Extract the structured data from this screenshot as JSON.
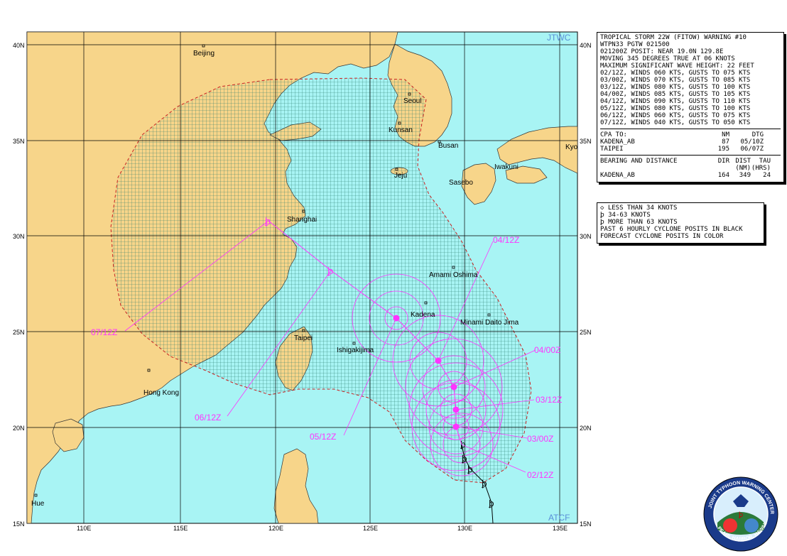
{
  "header": {
    "title": "TROPICAL STORM 22W (FITOW) WARNING #10",
    "id": "WTPN33 PGTW 021500",
    "posit": "021200Z POSIT: NEAR 19.0N 129.8E",
    "moving": "MOVING 345 DEGREES TRUE AT 06 KNOTS",
    "wave": "MAXIMUM SIGNIFICANT WAVE HEIGHT: 22 FEET",
    "forecasts": [
      "02/12Z, WINDS 060 KTS, GUSTS TO 075 KTS",
      "03/00Z, WINDS 070 KTS, GUSTS TO 085 KTS",
      "03/12Z, WINDS 080 KTS, GUSTS TO 100 KTS",
      "04/00Z, WINDS 085 KTS, GUSTS TO 105 KTS",
      "04/12Z, WINDS 090 KTS, GUSTS TO 110 KTS",
      "05/12Z, WINDS 080 KTS, GUSTS TO 100 KTS",
      "06/12Z, WINDS 060 KTS, GUSTS TO 075 KTS",
      "07/12Z, WINDS 040 KTS, GUSTS TO 050 KTS"
    ]
  },
  "cpa": {
    "heading": "CPA TO:",
    "col_nm": "NM",
    "col_dtg": "DTG",
    "rows": [
      {
        "place": "KADENA_AB",
        "nm": "87",
        "dtg": "05/10Z"
      },
      {
        "place": "TAIPEI",
        "nm": "195",
        "dtg": "06/07Z"
      }
    ]
  },
  "bearing": {
    "heading": "BEARING AND DISTANCE",
    "col_dir": "DIR",
    "col_dist": "DIST",
    "col_dist_unit": "(NM)",
    "col_tau": "TAU",
    "col_tau_unit": "(HRS)",
    "rows": [
      {
        "place": "KADENA_AB",
        "dir": "164",
        "dist": "349",
        "tau": "24"
      }
    ]
  },
  "legend": {
    "items": [
      "LESS THAN 34 KNOTS",
      "34-63 KNOTS",
      "MORE THAN 63 KNOTS"
    ],
    "note1": "PAST 6 HOURLY CYCLONE POSITS IN BLACK",
    "note2": "FORECAST CYCLONE POSITS IN COLOR"
  },
  "map": {
    "corner_tr": "JTWC",
    "corner_br": "ATCF",
    "lon_ticks": [
      "110E",
      "115E",
      "120E",
      "125E",
      "130E",
      "135E"
    ],
    "lat_ticks": [
      "40N",
      "35N",
      "30N",
      "25N",
      "20N",
      "15N"
    ],
    "places": [
      "Beijing",
      "Seoul",
      "Kunsan",
      "Busan",
      "Kyo",
      "Iwakuni",
      "Jeju",
      "Sasebo",
      "Shanghai",
      "Amami Oshima",
      "Kadena",
      "Minami Daito Jima",
      "Taipei",
      "Ishigakijima",
      "Hong Kong",
      "Hue"
    ],
    "forecast_labels": [
      "02/12Z",
      "03/00Z",
      "03/12Z",
      "04/00Z",
      "04/12Z",
      "05/12Z",
      "06/12Z",
      "07/12Z"
    ],
    "seal_text": "JOINT TYPHOON WARNING CENTER · PEARL HARBOR, HAWAII · USAF · USN",
    "colors": {
      "ocean": "#a8f4f4",
      "land": "#f7d58a",
      "track": "#ff33ff",
      "grid": "#000000",
      "danger": "#cc2222"
    }
  }
}
